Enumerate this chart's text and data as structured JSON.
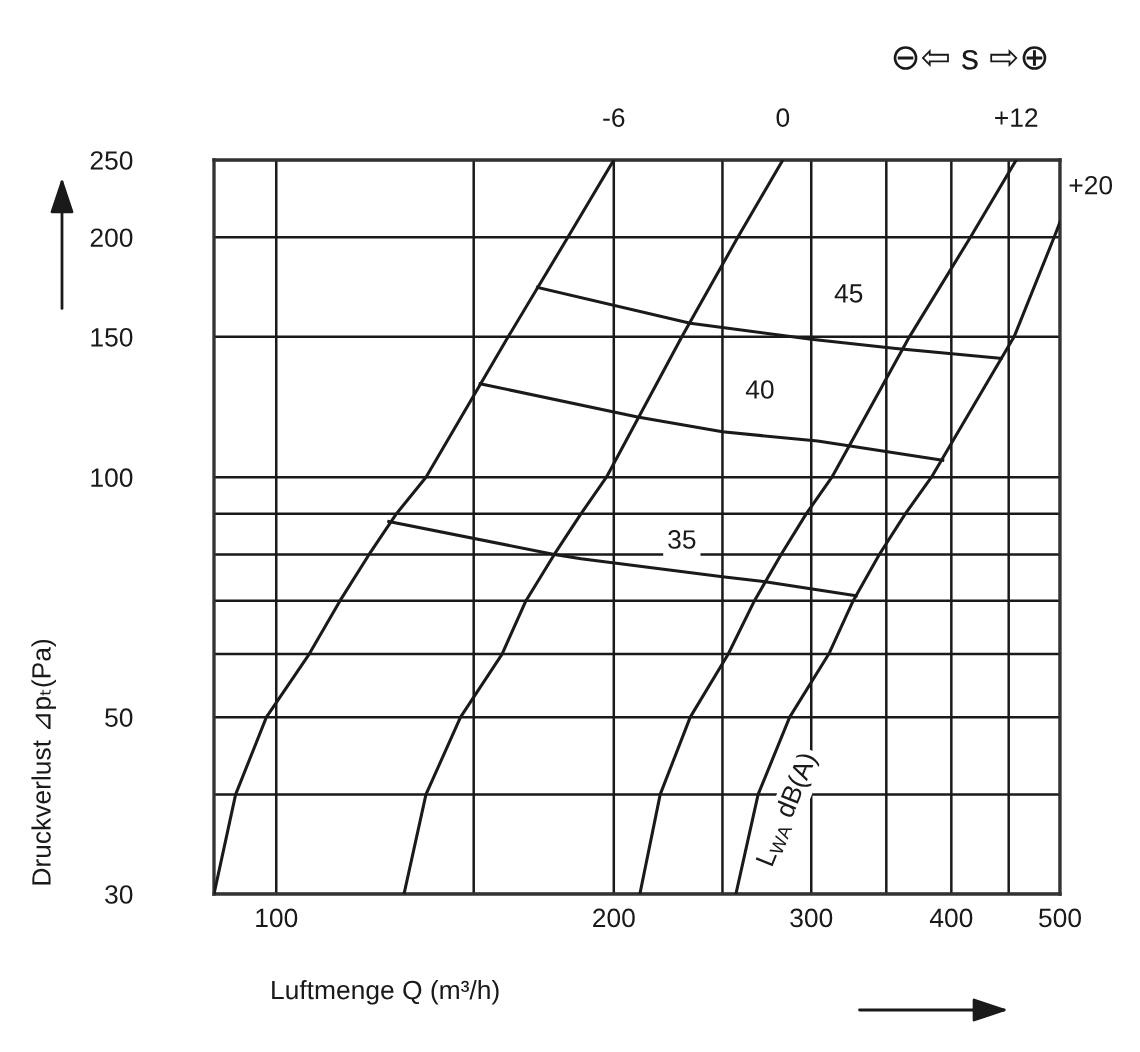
{
  "chart_data": {
    "type": "line",
    "xlabel": "Luftmenge Q (m³/h)",
    "ylabel": "Druckverlust ⊿pₜ(Pa)",
    "log": "xy",
    "xlim": [
      88,
      500
    ],
    "ylim": [
      30,
      250
    ],
    "xticks": [
      100,
      {
        "value": 150,
        "label": null
      },
      200,
      {
        "value": 250,
        "label": null
      },
      300,
      {
        "value": 350,
        "label": null
      },
      400,
      {
        "value": 450,
        "label": null
      },
      500
    ],
    "yticks": [
      30,
      {
        "value": 40,
        "label": null
      },
      50,
      {
        "value": 60,
        "label": null
      },
      {
        "value": 70,
        "label": null
      },
      {
        "value": 80,
        "label": null
      },
      {
        "value": 90,
        "label": null
      },
      100,
      150,
      200,
      250
    ],
    "grid": true,
    "series": [
      {
        "name": "-6",
        "color": "#1a1a1a",
        "x": [
          88,
          92,
          98,
          107,
          114,
          121,
          128,
          136,
          161,
          182,
          200
        ],
        "values": [
          30,
          40,
          50,
          60,
          70,
          80,
          90,
          100,
          150,
          200,
          250
        ]
      },
      {
        "name": "0",
        "color": "#1a1a1a",
        "x": [
          130,
          136,
          146,
          159,
          167,
          177,
          187,
          197,
          230,
          258,
          283
        ],
        "values": [
          30,
          40,
          50,
          60,
          70,
          80,
          90,
          100,
          150,
          200,
          250
        ]
      },
      {
        "name": "+12",
        "color": "#1a1a1a",
        "x": [
          211,
          220,
          234,
          253,
          267,
          282,
          297,
          313,
          367,
          416,
          457
        ],
        "values": [
          30,
          40,
          50,
          60,
          70,
          80,
          90,
          100,
          150,
          200,
          250
        ]
      },
      {
        "name": "+20",
        "color": "#1a1a1a",
        "x": [
          257,
          269,
          287,
          311,
          327,
          345,
          364,
          384,
          455,
          494,
          500
        ],
        "values": [
          30,
          40,
          50,
          60,
          70,
          80,
          90,
          100,
          150,
          200,
          209
        ]
      },
      {
        "color": "#1a1a1a",
        "x": [
          171,
          234,
          300,
          357,
          443
        ],
        "values": [
          173,
          156,
          149,
          145,
          141
        ]
      },
      {
        "color": "#1a1a1a",
        "x": [
          152,
          210,
          250,
          304,
          393
        ],
        "values": [
          131,
          119,
          114,
          111,
          105
        ]
      },
      {
        "color": "#1a1a1a",
        "x": [
          126,
          177,
          187,
          250,
          272,
          329
        ],
        "values": [
          88,
          80,
          79,
          75,
          74,
          71
        ]
      }
    ],
    "annotations": [
      {
        "text": "45",
        "x": 324,
        "y": 169
      },
      {
        "text": "40",
        "x": 270,
        "y": 128
      },
      {
        "text": "35",
        "x": 230,
        "y": 83
      },
      "L$_{WA}$ dB(A)",
      "⊖⇦ s ⇨⊕"
    ]
  }
}
